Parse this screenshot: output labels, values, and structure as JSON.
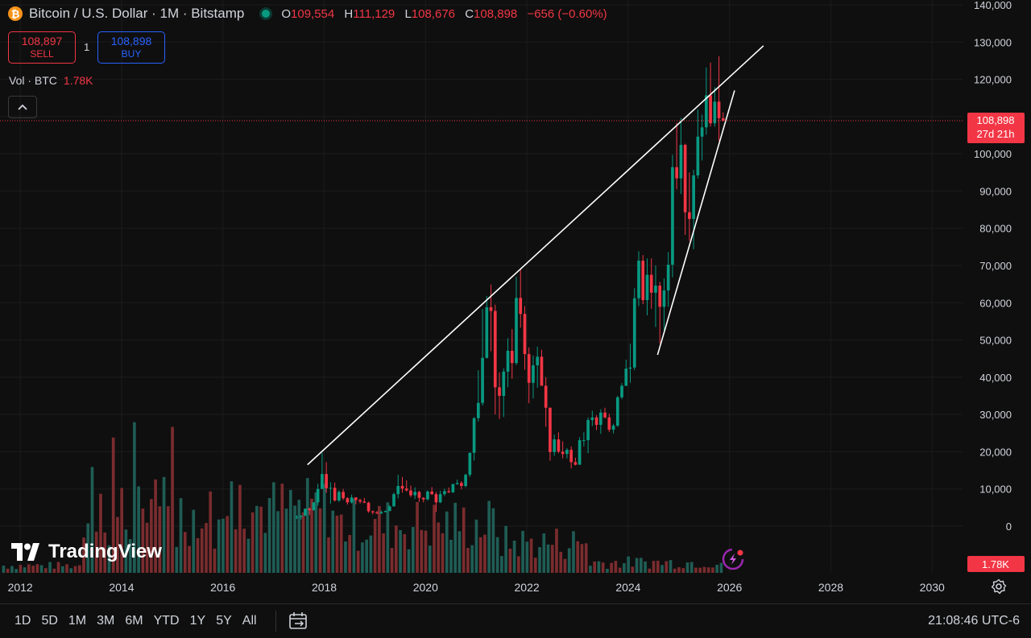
{
  "header": {
    "title": "Bitcoin / U.S. Dollar · 1M · Bitstamp",
    "open_label": "O",
    "open": "109,554",
    "high_label": "H",
    "high": "111,129",
    "low_label": "L",
    "low": "108,676",
    "close_label": "C",
    "close": "108,898",
    "change": "−656 (−0.60%)"
  },
  "trade": {
    "sell_price": "108,897",
    "sell_label": "SELL",
    "quantity": "1",
    "buy_price": "108,898",
    "buy_label": "BUY"
  },
  "volume_legend": {
    "label": "Vol · BTC",
    "value": "1.78K"
  },
  "price_tag": {
    "price": "108,898",
    "countdown": "27d 21h"
  },
  "volume_tag": "1.78K",
  "logo_text": "TradingView",
  "time_ranges": [
    "1D",
    "5D",
    "1M",
    "3M",
    "6M",
    "YTD",
    "1Y",
    "5Y",
    "All"
  ],
  "clock": "21:08:46 UTC-6",
  "colors": {
    "up": "#089981",
    "down": "#f23645",
    "up_vol": "#1f5d55",
    "down_vol": "#7a2c2e",
    "trend": "#ffffff",
    "bg": "#0f0f0f"
  },
  "icons": [
    "bitcoin-icon",
    "live-dot-icon",
    "chevron-up-icon",
    "calendar-range-icon",
    "gear-icon",
    "tradingview-logo-icon",
    "lightning-icon"
  ],
  "chart_data": {
    "type": "candlestick",
    "title": "Bitcoin / U.S. Dollar · 1M · Bitstamp",
    "y_axis": {
      "min": 0,
      "max": 140000,
      "ticks": [
        0,
        10000,
        20000,
        30000,
        40000,
        50000,
        60000,
        70000,
        80000,
        90000,
        100000,
        110000,
        120000,
        130000,
        140000
      ],
      "tick_labels": [
        "0",
        "10,000",
        "20,000",
        "30,000",
        "40,000",
        "50,000",
        "60,000",
        "70,000",
        "80,000",
        "90,000",
        "100,000",
        "110,000",
        "120,000",
        "130,000",
        "140,000"
      ]
    },
    "x_axis": {
      "range": [
        2011.6,
        2030.6
      ],
      "ticks": [
        2012,
        2014,
        2016,
        2018,
        2020,
        2022,
        2024,
        2026,
        2028,
        2030
      ],
      "tick_labels": [
        "2012",
        "2014",
        "2016",
        "2018",
        "2020",
        "2022",
        "2024",
        "2026",
        "2028",
        "2030"
      ]
    },
    "last_price": 108898,
    "trendlines": [
      {
        "from": [
          2017.67,
          16500
        ],
        "to": [
          2026.67,
          129000
        ]
      },
      {
        "from": [
          2024.58,
          46000
        ],
        "to": [
          2026.1,
          117000
        ]
      }
    ],
    "candles": [
      [
        "2017-06",
        2400,
        2900,
        1900,
        2500
      ],
      [
        "2017-07",
        2500,
        2900,
        1800,
        2850
      ],
      [
        "2017-08",
        2850,
        4700,
        2700,
        4700
      ],
      [
        "2017-09",
        4700,
        5000,
        3000,
        4300
      ],
      [
        "2017-10",
        4300,
        6400,
        4200,
        6400
      ],
      [
        "2017-11",
        6400,
        11400,
        5500,
        10000
      ],
      [
        "2017-12",
        10000,
        19700,
        10000,
        14000
      ],
      [
        "2018-01",
        14000,
        17200,
        9000,
        10200
      ],
      [
        "2018-02",
        10200,
        11800,
        6000,
        10300
      ],
      [
        "2018-03",
        10300,
        11700,
        6600,
        6900
      ],
      [
        "2018-04",
        6900,
        9700,
        6500,
        9200
      ],
      [
        "2018-05",
        9200,
        10000,
        7000,
        7500
      ],
      [
        "2018-06",
        7500,
        7800,
        5800,
        6400
      ],
      [
        "2018-07",
        6400,
        8500,
        6100,
        7700
      ],
      [
        "2018-08",
        7700,
        7800,
        5900,
        7000
      ],
      [
        "2018-09",
        7000,
        7400,
        6100,
        6600
      ],
      [
        "2018-10",
        6600,
        7600,
        6200,
        6300
      ],
      [
        "2018-11",
        6300,
        6600,
        3600,
        4000
      ],
      [
        "2018-12",
        4000,
        4200,
        3150,
        3700
      ],
      [
        "2019-01",
        3700,
        4100,
        3300,
        3400
      ],
      [
        "2019-02",
        3400,
        4200,
        3300,
        3800
      ],
      [
        "2019-03",
        3800,
        4200,
        3700,
        4100
      ],
      [
        "2019-04",
        4100,
        5600,
        4000,
        5300
      ],
      [
        "2019-05",
        5300,
        9000,
        5300,
        8600
      ],
      [
        "2019-06",
        8600,
        13800,
        7500,
        10800
      ],
      [
        "2019-07",
        10800,
        13200,
        9000,
        10100
      ],
      [
        "2019-08",
        10100,
        12300,
        9300,
        9600
      ],
      [
        "2019-09",
        9600,
        10900,
        7800,
        8300
      ],
      [
        "2019-10",
        8300,
        10400,
        7300,
        9200
      ],
      [
        "2019-11",
        9200,
        9500,
        6500,
        7600
      ],
      [
        "2019-12",
        7600,
        7800,
        6400,
        7200
      ],
      [
        "2020-01",
        7200,
        9600,
        6900,
        9300
      ],
      [
        "2020-02",
        9300,
        10500,
        8400,
        8600
      ],
      [
        "2020-03",
        8600,
        9200,
        3800,
        6400
      ],
      [
        "2020-04",
        6400,
        9500,
        6200,
        8600
      ],
      [
        "2020-05",
        8600,
        10100,
        8100,
        9400
      ],
      [
        "2020-06",
        9400,
        10400,
        8900,
        9100
      ],
      [
        "2020-07",
        9100,
        11400,
        8900,
        11300
      ],
      [
        "2020-08",
        11300,
        12500,
        11100,
        11600
      ],
      [
        "2020-09",
        11600,
        12100,
        9900,
        10800
      ],
      [
        "2020-10",
        10800,
        14100,
        10400,
        13800
      ],
      [
        "2020-11",
        13800,
        19800,
        13200,
        19700
      ],
      [
        "2020-12",
        19700,
        29300,
        17600,
        29000
      ],
      [
        "2021-01",
        29000,
        41900,
        28100,
        33100
      ],
      [
        "2021-02",
        33100,
        58300,
        32400,
        45200
      ],
      [
        "2021-03",
        45200,
        61800,
        45000,
        58800
      ],
      [
        "2021-04",
        58800,
        64900,
        47000,
        57800
      ],
      [
        "2021-05",
        57800,
        59500,
        30000,
        37300
      ],
      [
        "2021-06",
        37300,
        41300,
        28800,
        35000
      ],
      [
        "2021-07",
        35000,
        42400,
        29300,
        41500
      ],
      [
        "2021-08",
        41500,
        50500,
        37300,
        47100
      ],
      [
        "2021-09",
        47100,
        52900,
        39600,
        43800
      ],
      [
        "2021-10",
        43800,
        67000,
        43300,
        61300
      ],
      [
        "2021-11",
        61300,
        69000,
        53300,
        57000
      ],
      [
        "2021-12",
        57000,
        59100,
        42000,
        46200
      ],
      [
        "2022-01",
        46200,
        48000,
        33000,
        38500
      ],
      [
        "2022-02",
        38500,
        45800,
        34300,
        43200
      ],
      [
        "2022-03",
        43200,
        48200,
        37200,
        45500
      ],
      [
        "2022-04",
        45500,
        47400,
        37700,
        37700
      ],
      [
        "2022-05",
        37700,
        40000,
        26700,
        31800
      ],
      [
        "2022-06",
        31800,
        31900,
        17600,
        19900
      ],
      [
        "2022-07",
        19900,
        24600,
        18900,
        23300
      ],
      [
        "2022-08",
        23300,
        25200,
        19600,
        20000
      ],
      [
        "2022-09",
        20000,
        22800,
        18200,
        19400
      ],
      [
        "2022-10",
        19400,
        21000,
        18200,
        20500
      ],
      [
        "2022-11",
        20500,
        21400,
        15500,
        17200
      ],
      [
        "2022-12",
        17200,
        18400,
        16300,
        16500
      ],
      [
        "2023-01",
        16500,
        23900,
        16500,
        23100
      ],
      [
        "2023-02",
        23100,
        25200,
        21400,
        23100
      ],
      [
        "2023-03",
        23100,
        29200,
        19600,
        28500
      ],
      [
        "2023-04",
        28500,
        31000,
        26900,
        29200
      ],
      [
        "2023-05",
        29200,
        29800,
        25800,
        27200
      ],
      [
        "2023-06",
        27200,
        31400,
        24800,
        30500
      ],
      [
        "2023-07",
        30500,
        31800,
        28900,
        29200
      ],
      [
        "2023-08",
        29200,
        30200,
        25300,
        25900
      ],
      [
        "2023-09",
        25900,
        27500,
        24900,
        27000
      ],
      [
        "2023-10",
        27000,
        35000,
        26600,
        34600
      ],
      [
        "2023-11",
        34600,
        38400,
        34100,
        37700
      ],
      [
        "2023-12",
        37700,
        44700,
        37600,
        42300
      ],
      [
        "2024-01",
        42300,
        49000,
        38500,
        42600
      ],
      [
        "2024-02",
        42600,
        63900,
        41900,
        61200
      ],
      [
        "2024-03",
        61200,
        73800,
        59100,
        71300
      ],
      [
        "2024-04",
        71300,
        72800,
        59600,
        60700
      ],
      [
        "2024-05",
        60700,
        71900,
        56600,
        67500
      ],
      [
        "2024-06",
        67500,
        71900,
        58400,
        62700
      ],
      [
        "2024-07",
        62700,
        70000,
        53500,
        64600
      ],
      [
        "2024-08",
        64600,
        65600,
        49100,
        58900
      ],
      [
        "2024-09",
        58900,
        66500,
        52600,
        63300
      ],
      [
        "2024-10",
        63300,
        73600,
        58900,
        70200
      ],
      [
        "2024-11",
        70200,
        99700,
        66800,
        96400
      ],
      [
        "2024-12",
        96400,
        108300,
        90500,
        93400
      ],
      [
        "2025-01",
        93400,
        109600,
        89200,
        102400
      ],
      [
        "2025-02",
        102400,
        102700,
        78200,
        84300
      ],
      [
        "2025-03",
        84300,
        95000,
        76600,
        82500
      ],
      [
        "2025-04",
        82500,
        95700,
        74400,
        94200
      ],
      [
        "2025-05",
        94200,
        111900,
        93400,
        104600
      ],
      [
        "2025-06",
        104600,
        110500,
        98200,
        107100
      ],
      [
        "2025-07",
        107100,
        123200,
        105100,
        115700
      ],
      [
        "2025-08",
        115700,
        124500,
        107300,
        108200
      ],
      [
        "2025-09",
        108200,
        117900,
        107300,
        114000
      ],
      [
        "2025-10",
        114000,
        126200,
        103500,
        109554
      ],
      [
        "2025-11",
        109554,
        111129,
        108676,
        108898
      ]
    ]
  }
}
